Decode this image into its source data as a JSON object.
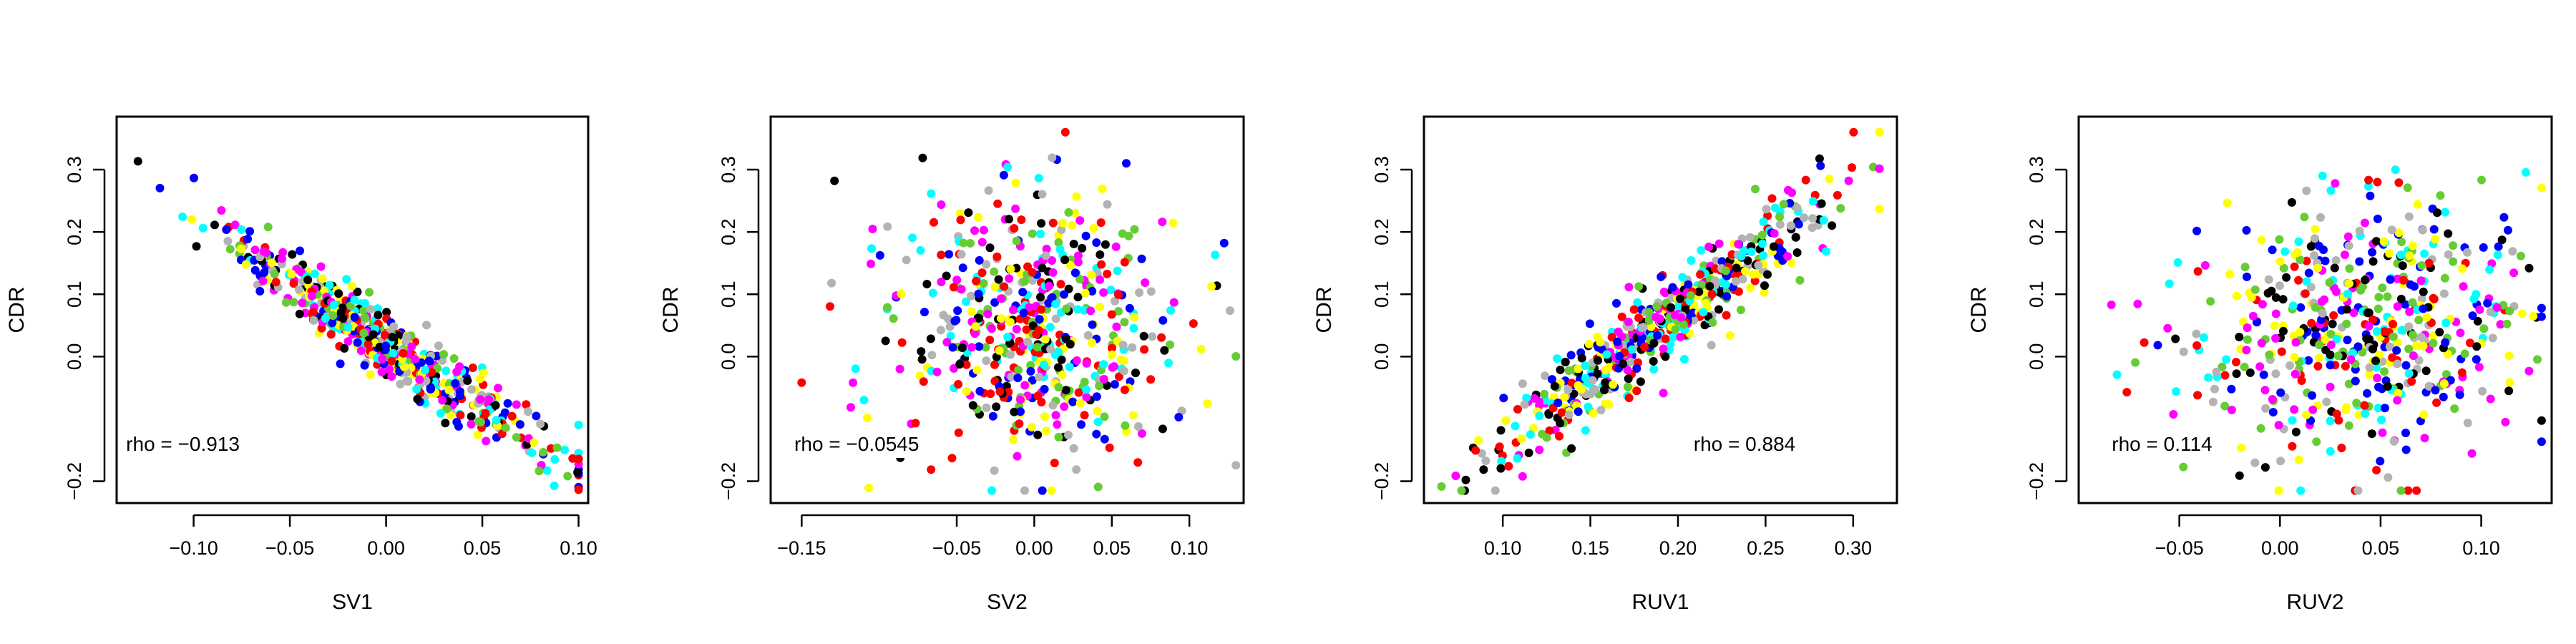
{
  "palette": [
    "#000000",
    "#ff0000",
    "#0000ff",
    "#00ffff",
    "#66cc33",
    "#ff00ff",
    "#ffff00",
    "#b3b3b3"
  ],
  "chart_data": [
    {
      "type": "scatter",
      "xlabel": "SV1",
      "ylabel": "CDR",
      "xlim": [
        -0.14,
        0.105
      ],
      "ylim": [
        -0.235,
        0.385
      ],
      "xticks": [
        -0.1,
        -0.05,
        0.0,
        0.05,
        0.1
      ],
      "xtick_labels": [
        "−0.10",
        "−0.05",
        "0.00",
        "0.05",
        "0.10"
      ],
      "yticks": [
        -0.2,
        0.0,
        0.1,
        0.2,
        0.3
      ],
      "ytick_labels": [
        "−0.2",
        "0.0",
        "0.1",
        "0.2",
        "0.3"
      ],
      "grid": false,
      "annotation": "rho = −0.913",
      "rho": -0.913,
      "model": {
        "a": 0.02,
        "b": -2.05,
        "noise": 0.025,
        "xmean": 0.0,
        "xsd": 0.045,
        "xmin": -0.135,
        "xmax": 0.1
      }
    },
    {
      "type": "scatter",
      "xlabel": "SV2",
      "ylabel": "CDR",
      "xlim": [
        -0.17,
        0.135
      ],
      "ylim": [
        -0.235,
        0.385
      ],
      "xticks": [
        -0.15,
        -0.05,
        0.0,
        0.05,
        0.1
      ],
      "xtick_labels": [
        "−0.15",
        "−0.05",
        "0.00",
        "0.05",
        "0.10"
      ],
      "yticks": [
        -0.2,
        0.0,
        0.1,
        0.2,
        0.3
      ],
      "ytick_labels": [
        "−0.2",
        "0.0",
        "0.1",
        "0.2",
        "0.3"
      ],
      "grid": false,
      "annotation": "rho = −0.0545",
      "rho": -0.0545,
      "model": {
        "a": 0.05,
        "b": -0.05,
        "noise": 0.105,
        "xmean": 0.0,
        "xsd": 0.045,
        "xmin": -0.15,
        "xmax": 0.13
      }
    },
    {
      "type": "scatter",
      "xlabel": "RUV1",
      "ylabel": "CDR",
      "xlim": [
        0.055,
        0.325
      ],
      "ylim": [
        -0.235,
        0.385
      ],
      "xticks": [
        0.1,
        0.15,
        0.2,
        0.25,
        0.3
      ],
      "xtick_labels": [
        "0.10",
        "0.15",
        "0.20",
        "0.25",
        "0.30"
      ],
      "yticks": [
        -0.2,
        0.0,
        0.1,
        0.2,
        0.3
      ],
      "ytick_labels": [
        "−0.2",
        "0.0",
        "0.1",
        "0.2",
        "0.3"
      ],
      "grid": false,
      "annotation": "rho = 0.884",
      "rho": 0.884,
      "model": {
        "a": -0.35,
        "b": 2.1,
        "noise": 0.035,
        "xmean": 0.19,
        "xsd": 0.045,
        "xmin": 0.065,
        "xmax": 0.315
      }
    },
    {
      "type": "scatter",
      "xlabel": "RUV2",
      "ylabel": "CDR",
      "xlim": [
        -0.1,
        0.135
      ],
      "ylim": [
        -0.235,
        0.385
      ],
      "xticks": [
        -0.05,
        0.0,
        0.05,
        0.1
      ],
      "xtick_labels": [
        "−0.05",
        "0.00",
        "0.05",
        "0.10"
      ],
      "yticks": [
        -0.2,
        0.0,
        0.1,
        0.2,
        0.3
      ],
      "ytick_labels": [
        "−0.2",
        "0.0",
        "0.1",
        "0.2",
        "0.3"
      ],
      "grid": false,
      "annotation": "rho = 0.114",
      "rho": 0.114,
      "model": {
        "a": 0.045,
        "b": 0.25,
        "noise": 0.105,
        "xmean": 0.04,
        "xsd": 0.04,
        "xmin": -0.09,
        "xmax": 0.13
      }
    }
  ]
}
